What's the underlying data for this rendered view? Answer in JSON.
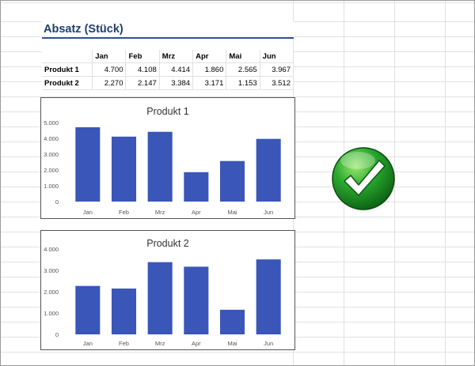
{
  "sheet": {
    "title": "Absatz (Stück)",
    "months": [
      "Jan",
      "Feb",
      "Mrz",
      "Apr",
      "Mai",
      "Jun"
    ],
    "rows": [
      {
        "label": "Produkt 1",
        "values": [
          "4.700",
          "4.108",
          "4.414",
          "1.860",
          "2.565",
          "3.967"
        ]
      },
      {
        "label": "Produkt 2",
        "values": [
          "2.270",
          "2.147",
          "3.384",
          "3.171",
          "1.153",
          "3.512"
        ]
      }
    ]
  },
  "chart_data": [
    {
      "type": "bar",
      "title": "Produkt 1",
      "categories": [
        "Jan",
        "Feb",
        "Mrz",
        "Apr",
        "Mai",
        "Jun"
      ],
      "values": [
        4700,
        4108,
        4414,
        1860,
        2565,
        3967
      ],
      "ylim": [
        0,
        5000
      ],
      "yticks": [
        0,
        1000,
        2000,
        3000,
        4000,
        5000
      ],
      "ytick_labels": [
        "0",
        "1.000",
        "2.000",
        "3.000",
        "4.000",
        "5.000"
      ],
      "bar_color": "#3a56b8",
      "grid": false,
      "legend": "none"
    },
    {
      "type": "bar",
      "title": "Produkt 2",
      "categories": [
        "Jan",
        "Feb",
        "Mrz",
        "Apr",
        "Mai",
        "Jun"
      ],
      "values": [
        2270,
        2147,
        3384,
        3171,
        1153,
        3512
      ],
      "ylim": [
        0,
        4000
      ],
      "yticks": [
        0,
        1000,
        2000,
        3000,
        4000
      ],
      "ytick_labels": [
        "0",
        "1.000",
        "2.000",
        "3.000",
        "4.000"
      ],
      "bar_color": "#3a56b8",
      "grid": false,
      "legend": "none"
    }
  ],
  "badge": {
    "icon": "check-mark-icon",
    "color": "#1f9a2a"
  }
}
